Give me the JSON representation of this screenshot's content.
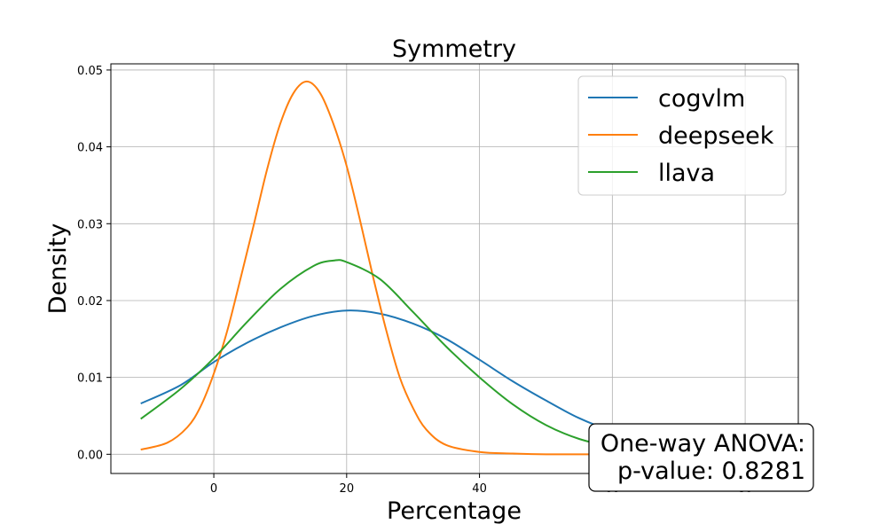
{
  "chart_data": {
    "type": "line",
    "title": "Symmetry",
    "xlabel": "Percentage",
    "ylabel": "Density",
    "xlim": [
      -15.5,
      88
    ],
    "ylim": [
      -0.0025,
      0.0508
    ],
    "xticks": [
      0,
      20,
      40,
      60,
      80
    ],
    "yticks": [
      0.0,
      0.01,
      0.02,
      0.03,
      0.04,
      0.05
    ],
    "ytick_labels": [
      "0.00",
      "0.01",
      "0.02",
      "0.03",
      "0.04",
      "0.05"
    ],
    "grid": true,
    "legend_position": "top-right",
    "series": [
      {
        "name": "cogvlm",
        "color": "#1f77b4",
        "x": [
          -11,
          -5,
          0,
          5,
          10,
          15,
          20,
          25,
          30,
          35,
          40,
          45,
          50,
          55,
          60,
          65,
          70,
          75,
          80,
          83
        ],
        "y": [
          0.0066,
          0.009,
          0.012,
          0.0145,
          0.0165,
          0.018,
          0.0187,
          0.0183,
          0.017,
          0.015,
          0.0123,
          0.0095,
          0.007,
          0.0047,
          0.003,
          0.0018,
          0.001,
          0.0005,
          0.0002,
          0.0001
        ]
      },
      {
        "name": "deepseek",
        "color": "#ff7f0e",
        "x": [
          -11,
          -7,
          -4,
          -2,
          0,
          2,
          4,
          6,
          8,
          10,
          12,
          14,
          16,
          18,
          20,
          22,
          24,
          26,
          28,
          30,
          32,
          35,
          40,
          45,
          50,
          60,
          70,
          83
        ],
        "y": [
          0.0006,
          0.0015,
          0.0035,
          0.0062,
          0.0105,
          0.016,
          0.0228,
          0.0298,
          0.037,
          0.043,
          0.047,
          0.0485,
          0.047,
          0.043,
          0.0375,
          0.0305,
          0.023,
          0.016,
          0.01,
          0.006,
          0.0032,
          0.0012,
          0.0003,
          0.0001,
          0.0,
          0.0,
          0.0,
          0.0
        ]
      },
      {
        "name": "llava",
        "color": "#2ca02c",
        "x": [
          -11,
          -5,
          0,
          5,
          10,
          15,
          18,
          20,
          25,
          30,
          35,
          40,
          45,
          50,
          55,
          60,
          65,
          70,
          75,
          83
        ],
        "y": [
          0.0046,
          0.0085,
          0.0125,
          0.0172,
          0.0215,
          0.0245,
          0.0252,
          0.025,
          0.0228,
          0.0185,
          0.014,
          0.01,
          0.0065,
          0.0038,
          0.002,
          0.001,
          0.0005,
          0.0002,
          0.0001,
          0.0
        ]
      }
    ]
  },
  "annotation": {
    "line1": "One-way ANOVA:",
    "line2": "p-value: 0.8281"
  }
}
